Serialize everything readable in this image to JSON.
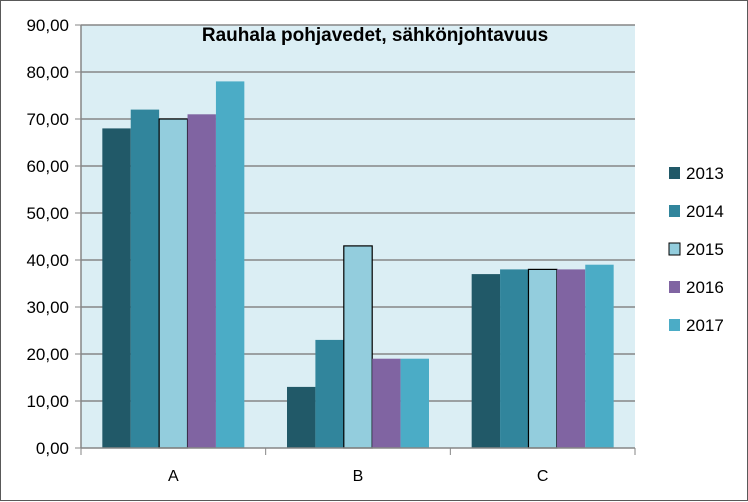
{
  "chart_data": {
    "type": "bar",
    "title": "Rauhala pohjavedet, sähkönjohtavuus",
    "categories": [
      "A",
      "B",
      "C"
    ],
    "series": [
      {
        "name": "2013",
        "values": [
          68,
          13,
          37
        ],
        "color": "#215968"
      },
      {
        "name": "2014",
        "values": [
          72,
          23,
          38
        ],
        "color": "#31859c"
      },
      {
        "name": "2015",
        "values": [
          70,
          43,
          38
        ],
        "color": "#93cddd"
      },
      {
        "name": "2016",
        "values": [
          71,
          19,
          38
        ],
        "color": "#8064a2"
      },
      {
        "name": "2017",
        "values": [
          78,
          19,
          39
        ],
        "color": "#4bacc6"
      }
    ],
    "ylim": [
      0,
      90
    ],
    "yticks": [
      "0,00",
      "10,00",
      "20,00",
      "30,00",
      "40,00",
      "50,00",
      "60,00",
      "70,00",
      "80,00",
      "90,00"
    ],
    "grid": true,
    "legend": "right",
    "plot_background": "#dbeef4"
  }
}
